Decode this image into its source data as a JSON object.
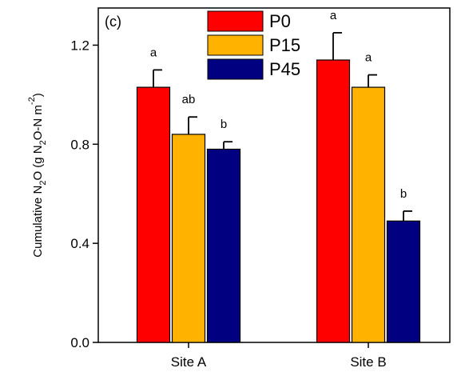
{
  "chart_data": {
    "type": "bar",
    "panel_label": "(c)",
    "ylabel": {
      "main": "Cumulative N",
      "sub1": "2",
      "mid1": "O (g N",
      "sub2": "2",
      "mid2": "O-N m",
      "sup": "-2",
      "end": ")"
    },
    "categories": [
      "Site A",
      "Site B"
    ],
    "ylim": [
      0,
      1.35
    ],
    "yticks": [
      0.0,
      0.4,
      0.8,
      1.2
    ],
    "ytick_labels": [
      "0.0",
      "0.4",
      "0.8",
      "1.2"
    ],
    "legend_position": "top-center",
    "series": [
      {
        "name": "P0",
        "color": "#ff0000",
        "values": [
          1.03,
          1.14
        ],
        "errors": [
          0.07,
          0.11
        ],
        "letters": [
          "a",
          "a"
        ]
      },
      {
        "name": "P15",
        "color": "#ffb300",
        "values": [
          0.84,
          1.03
        ],
        "errors": [
          0.07,
          0.05
        ],
        "letters": [
          "ab",
          "a"
        ]
      },
      {
        "name": "P45",
        "color": "#000080",
        "values": [
          0.78,
          0.49
        ],
        "errors": [
          0.03,
          0.04
        ],
        "letters": [
          "b",
          "b"
        ]
      }
    ]
  }
}
